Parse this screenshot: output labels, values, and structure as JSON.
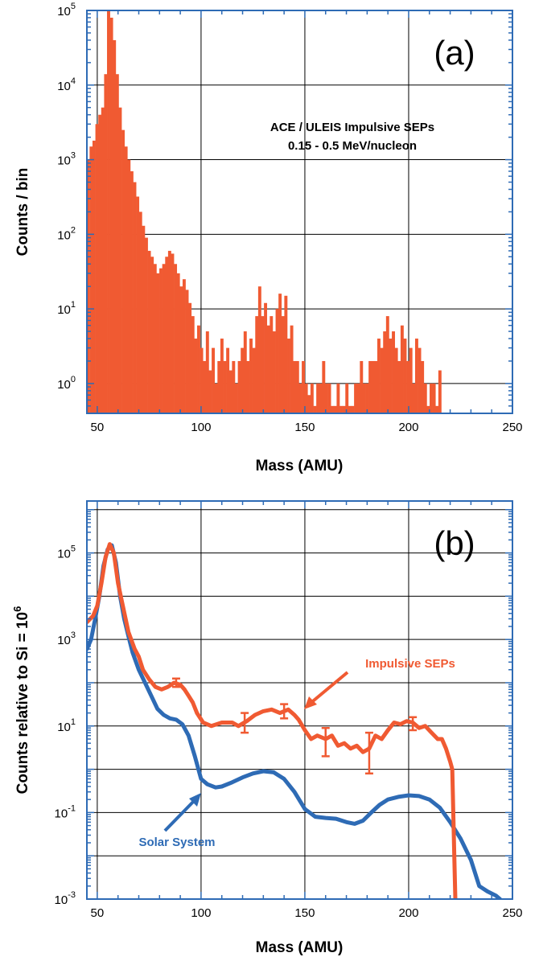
{
  "colors": {
    "sep": "#f05a32",
    "solar": "#2e6bb5",
    "frame": "#2e6bb5",
    "grid": "#000000"
  },
  "chart_data": [
    {
      "type": "bar",
      "panel": "(a)",
      "annotation": [
        "ACE / ULEIS Impulsive SEPs",
        "0.15 - 0.5 MeV/nucleon"
      ],
      "xlabel": "Mass (AMU)",
      "ylabel": "Counts / bin",
      "xlim": [
        45,
        250
      ],
      "ylim_exp": [
        -0.4,
        5
      ],
      "yscale": "log",
      "xticks": [
        50,
        100,
        150,
        200,
        250
      ],
      "yticks": [
        {
          "base": "10",
          "exp": "0",
          "v": 0
        },
        {
          "base": "10",
          "exp": "1",
          "v": 1
        },
        {
          "base": "10",
          "exp": "2",
          "v": 2
        },
        {
          "base": "10",
          "exp": "3",
          "v": 3
        },
        {
          "base": "10",
          "exp": "4",
          "v": 4
        },
        {
          "base": "10",
          "exp": "5",
          "v": 5
        }
      ],
      "grid": true,
      "bin_width": 1.4,
      "values": [
        [
          45.5,
          1000
        ],
        [
          47,
          1500
        ],
        [
          48.4,
          1800
        ],
        [
          49.8,
          3000
        ],
        [
          51.2,
          4000
        ],
        [
          52.6,
          5000
        ],
        [
          54,
          14000
        ],
        [
          55.4,
          98000
        ],
        [
          56.8,
          80000
        ],
        [
          58.2,
          40000
        ],
        [
          59.6,
          14000
        ],
        [
          61,
          5000
        ],
        [
          62.4,
          2500
        ],
        [
          63.8,
          1500
        ],
        [
          65.2,
          1000
        ],
        [
          66.6,
          700
        ],
        [
          68,
          500
        ],
        [
          69.4,
          320
        ],
        [
          70.8,
          200
        ],
        [
          72.2,
          130
        ],
        [
          73.6,
          90
        ],
        [
          75,
          60
        ],
        [
          76.4,
          50
        ],
        [
          77.8,
          40
        ],
        [
          79.2,
          30
        ],
        [
          80.6,
          35
        ],
        [
          82,
          40
        ],
        [
          83.4,
          50
        ],
        [
          84.8,
          60
        ],
        [
          86.2,
          55
        ],
        [
          87.6,
          40
        ],
        [
          89,
          30
        ],
        [
          90.4,
          20
        ],
        [
          91.8,
          25
        ],
        [
          93.2,
          18
        ],
        [
          94.6,
          12
        ],
        [
          96,
          8
        ],
        [
          97.4,
          4
        ],
        [
          98.8,
          6
        ],
        [
          100.2,
          3
        ],
        [
          101.6,
          2
        ],
        [
          103,
          5
        ],
        [
          104.4,
          1.5
        ],
        [
          105.8,
          3
        ],
        [
          107.2,
          1
        ],
        [
          108.6,
          2
        ],
        [
          110,
          4
        ],
        [
          111.4,
          2
        ],
        [
          112.8,
          3
        ],
        [
          114.2,
          1.5
        ],
        [
          115.6,
          2
        ],
        [
          117,
          1
        ],
        [
          118.4,
          2
        ],
        [
          119.8,
          3
        ],
        [
          121.2,
          5
        ],
        [
          122.6,
          2
        ],
        [
          124,
          4
        ],
        [
          125.4,
          3
        ],
        [
          126.8,
          8
        ],
        [
          128.2,
          20
        ],
        [
          129.6,
          8
        ],
        [
          131,
          12
        ],
        [
          132.4,
          6
        ],
        [
          133.8,
          8
        ],
        [
          135.2,
          5
        ],
        [
          136.6,
          10
        ],
        [
          138,
          16
        ],
        [
          139.4,
          8
        ],
        [
          140.8,
          15
        ],
        [
          142.2,
          4
        ],
        [
          143.6,
          6
        ],
        [
          145,
          2
        ],
        [
          146.4,
          2
        ],
        [
          147.8,
          1
        ],
        [
          149.2,
          2
        ],
        [
          150.6,
          1
        ],
        [
          152,
          0.7
        ],
        [
          153.4,
          1
        ],
        [
          154.8,
          0.5
        ],
        [
          156.2,
          1
        ],
        [
          157.6,
          1
        ],
        [
          159,
          2
        ],
        [
          160.4,
          1
        ],
        [
          161.8,
          1
        ],
        [
          163.2,
          0.5
        ],
        [
          164.6,
          0.5
        ],
        [
          166,
          1
        ],
        [
          167.4,
          0.5
        ],
        [
          168.8,
          0.5
        ],
        [
          170.2,
          1
        ],
        [
          171.6,
          0.5
        ],
        [
          173,
          0.5
        ],
        [
          174.4,
          1
        ],
        [
          175.8,
          1
        ],
        [
          177.2,
          2
        ],
        [
          178.6,
          1
        ],
        [
          180,
          1
        ],
        [
          181.4,
          2
        ],
        [
          182.8,
          2
        ],
        [
          184.2,
          2
        ],
        [
          185.6,
          4
        ],
        [
          187,
          3
        ],
        [
          188.4,
          5
        ],
        [
          189.8,
          8
        ],
        [
          191.2,
          4
        ],
        [
          192.6,
          5
        ],
        [
          194,
          3
        ],
        [
          195.4,
          2
        ],
        [
          196.8,
          6
        ],
        [
          198.2,
          4
        ],
        [
          199.6,
          2
        ],
        [
          201,
          3
        ],
        [
          202.4,
          1
        ],
        [
          203.8,
          4
        ],
        [
          205.2,
          3
        ],
        [
          206.6,
          2
        ],
        [
          208,
          1
        ],
        [
          209.4,
          0.5
        ],
        [
          210.8,
          1
        ],
        [
          212.2,
          1
        ],
        [
          213.6,
          0.5
        ],
        [
          215,
          1.5
        ]
      ]
    },
    {
      "type": "line",
      "panel": "(b)",
      "xlabel": "Mass (AMU)",
      "ylabel": "Counts relative to Si = 10",
      "ylabel_sup": "6",
      "xlim": [
        45,
        250
      ],
      "ylim_exp": [
        -3,
        6.2
      ],
      "yscale": "log",
      "xticks": [
        50,
        100,
        150,
        200,
        250
      ],
      "yticks": [
        {
          "base": "10",
          "exp": "-3",
          "v": -3
        },
        {
          "base": "10",
          "exp": "-1",
          "v": -1
        },
        {
          "base": "10",
          "exp": "1",
          "v": 1
        },
        {
          "base": "10",
          "exp": "3",
          "v": 3
        },
        {
          "base": "10",
          "exp": "5",
          "v": 5
        }
      ],
      "grid": true,
      "series": [
        {
          "name": "Impulsive SEPs",
          "color": "#f05a32",
          "points": [
            [
              45,
              2500
            ],
            [
              48,
              3500
            ],
            [
              50,
              6000
            ],
            [
              52,
              20000
            ],
            [
              54,
              80000
            ],
            [
              56,
              160000
            ],
            [
              58,
              100000
            ],
            [
              60,
              20000
            ],
            [
              62,
              7000
            ],
            [
              65,
              1500
            ],
            [
              68,
              600
            ],
            [
              70,
              400
            ],
            [
              72,
              200
            ],
            [
              75,
              120
            ],
            [
              78,
              80
            ],
            [
              81,
              70
            ],
            [
              84,
              80
            ],
            [
              87,
              100
            ],
            [
              90,
              90
            ],
            [
              92,
              70
            ],
            [
              94,
              50
            ],
            [
              96,
              35
            ],
            [
              98,
              20
            ],
            [
              101,
              12
            ],
            [
              105,
              10
            ],
            [
              110,
              12
            ],
            [
              115,
              12
            ],
            [
              118,
              10
            ],
            [
              122,
              13
            ],
            [
              126,
              18
            ],
            [
              130,
              22
            ],
            [
              134,
              24
            ],
            [
              138,
              20
            ],
            [
              142,
              24
            ],
            [
              145,
              18
            ],
            [
              147,
              14
            ],
            [
              150,
              8
            ],
            [
              153,
              5
            ],
            [
              156,
              6
            ],
            [
              160,
              5
            ],
            [
              163,
              6
            ],
            [
              166,
              3.5
            ],
            [
              169,
              4
            ],
            [
              172,
              3
            ],
            [
              175,
              3.5
            ],
            [
              178,
              2.5
            ],
            [
              181,
              3
            ],
            [
              184,
              6
            ],
            [
              187,
              5
            ],
            [
              190,
              8
            ],
            [
              193,
              12
            ],
            [
              196,
              11
            ],
            [
              199,
              13
            ],
            [
              202,
              12
            ],
            [
              205,
              9
            ],
            [
              208,
              10
            ],
            [
              211,
              7
            ],
            [
              214,
              5
            ],
            [
              216,
              5
            ],
            [
              218,
              3
            ],
            [
              220,
              1.5
            ],
            [
              221,
              1
            ],
            [
              222,
              0.01
            ],
            [
              222.5,
              0.001
            ]
          ]
        },
        {
          "name": "Solar System",
          "color": "#2e6bb5",
          "points": [
            [
              45,
              600
            ],
            [
              47,
              1000
            ],
            [
              49,
              3000
            ],
            [
              51,
              10000
            ],
            [
              53,
              50000
            ],
            [
              55,
              120000
            ],
            [
              57,
              150000
            ],
            [
              59,
              60000
            ],
            [
              61,
              10000
            ],
            [
              63,
              3000
            ],
            [
              65,
              1200
            ],
            [
              67,
              500
            ],
            [
              70,
              200
            ],
            [
              73,
              100
            ],
            [
              76,
              50
            ],
            [
              79,
              25
            ],
            [
              82,
              18
            ],
            [
              85,
              15
            ],
            [
              88,
              14
            ],
            [
              91,
              11
            ],
            [
              94,
              6
            ],
            [
              97,
              2
            ],
            [
              100,
              0.6
            ],
            [
              103,
              0.45
            ],
            [
              107,
              0.38
            ],
            [
              110,
              0.4
            ],
            [
              115,
              0.5
            ],
            [
              120,
              0.65
            ],
            [
              125,
              0.8
            ],
            [
              130,
              0.9
            ],
            [
              135,
              0.85
            ],
            [
              140,
              0.6
            ],
            [
              145,
              0.3
            ],
            [
              150,
              0.12
            ],
            [
              155,
              0.08
            ],
            [
              160,
              0.075
            ],
            [
              165,
              0.072
            ],
            [
              170,
              0.06
            ],
            [
              174,
              0.055
            ],
            [
              178,
              0.065
            ],
            [
              182,
              0.1
            ],
            [
              186,
              0.15
            ],
            [
              190,
              0.2
            ],
            [
              195,
              0.23
            ],
            [
              200,
              0.25
            ],
            [
              205,
              0.24
            ],
            [
              210,
              0.2
            ],
            [
              215,
              0.13
            ],
            [
              220,
              0.06
            ],
            [
              225,
              0.025
            ],
            [
              230,
              0.008
            ],
            [
              234,
              0.002
            ],
            [
              238,
              0.0015
            ],
            [
              242,
              0.0012
            ],
            [
              244,
              0.001
            ]
          ]
        }
      ],
      "error_bars": [
        [
          88,
          100,
          80,
          125
        ],
        [
          121,
          12,
          7,
          20
        ],
        [
          140,
          23,
          15,
          32
        ],
        [
          160,
          5,
          2,
          9
        ],
        [
          181,
          3,
          0.8,
          7
        ],
        [
          202,
          13,
          8,
          16
        ]
      ],
      "annotations": [
        {
          "text": "Impulsive SEPs",
          "color": "#f05a32"
        },
        {
          "text": "Solar System",
          "color": "#2e6bb5"
        }
      ]
    }
  ]
}
